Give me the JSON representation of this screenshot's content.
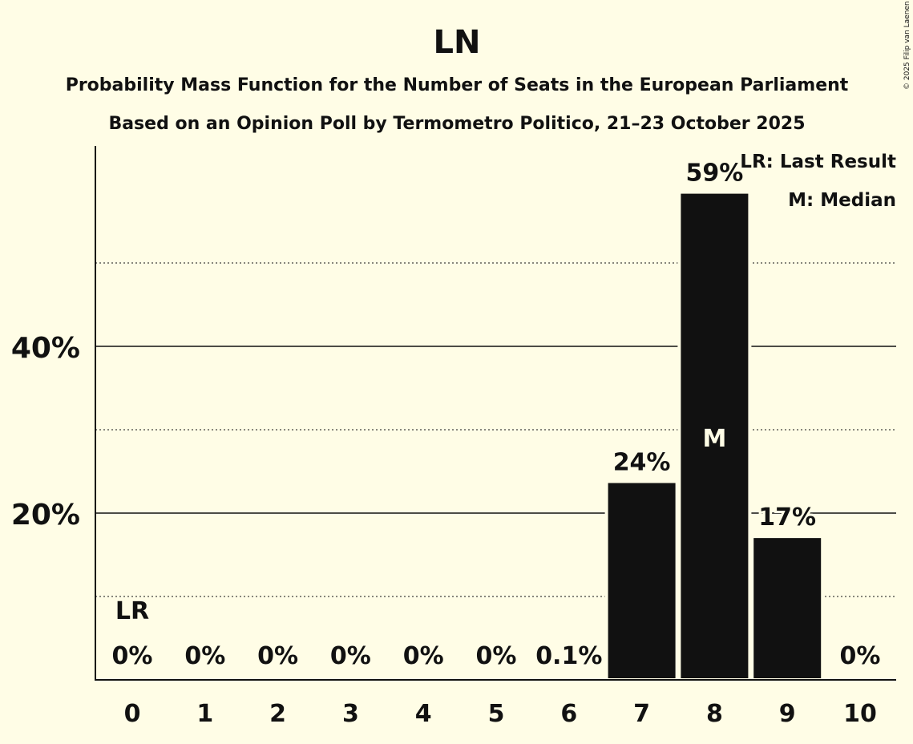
{
  "chart_data": {
    "type": "bar",
    "title": "LN",
    "subtitle": "Probability Mass Function for the Number of Seats in the European Parliament",
    "subtitle2": "Based on an Opinion Poll by Termometro Politico, 21–23 October 2025",
    "copyright": "© 2025 Filip van Laenen",
    "categories": [
      "0",
      "1",
      "2",
      "3",
      "4",
      "5",
      "6",
      "7",
      "8",
      "9",
      "10"
    ],
    "values": [
      0,
      0,
      0,
      0,
      0,
      0,
      0.1,
      23.8,
      58.5,
      17.2,
      0
    ],
    "data_labels": [
      "0%",
      "0%",
      "0%",
      "0%",
      "0%",
      "0%",
      "0.1%",
      "24%",
      "59%",
      "17%",
      "0%"
    ],
    "ylim": [
      0,
      64
    ],
    "y_ticks": [
      {
        "value": 20,
        "label": "20%"
      },
      {
        "value": 40,
        "label": "40%"
      }
    ],
    "minor_gridlines": [
      10,
      30,
      50
    ],
    "last_result_index": 0,
    "last_result_label": "LR",
    "median_index": 8,
    "median_label": "M",
    "legend": [
      "LR: Last Result",
      "M: Median"
    ],
    "legend_position": "top-right",
    "bar_color": "#111111",
    "background": "#fffde6"
  }
}
